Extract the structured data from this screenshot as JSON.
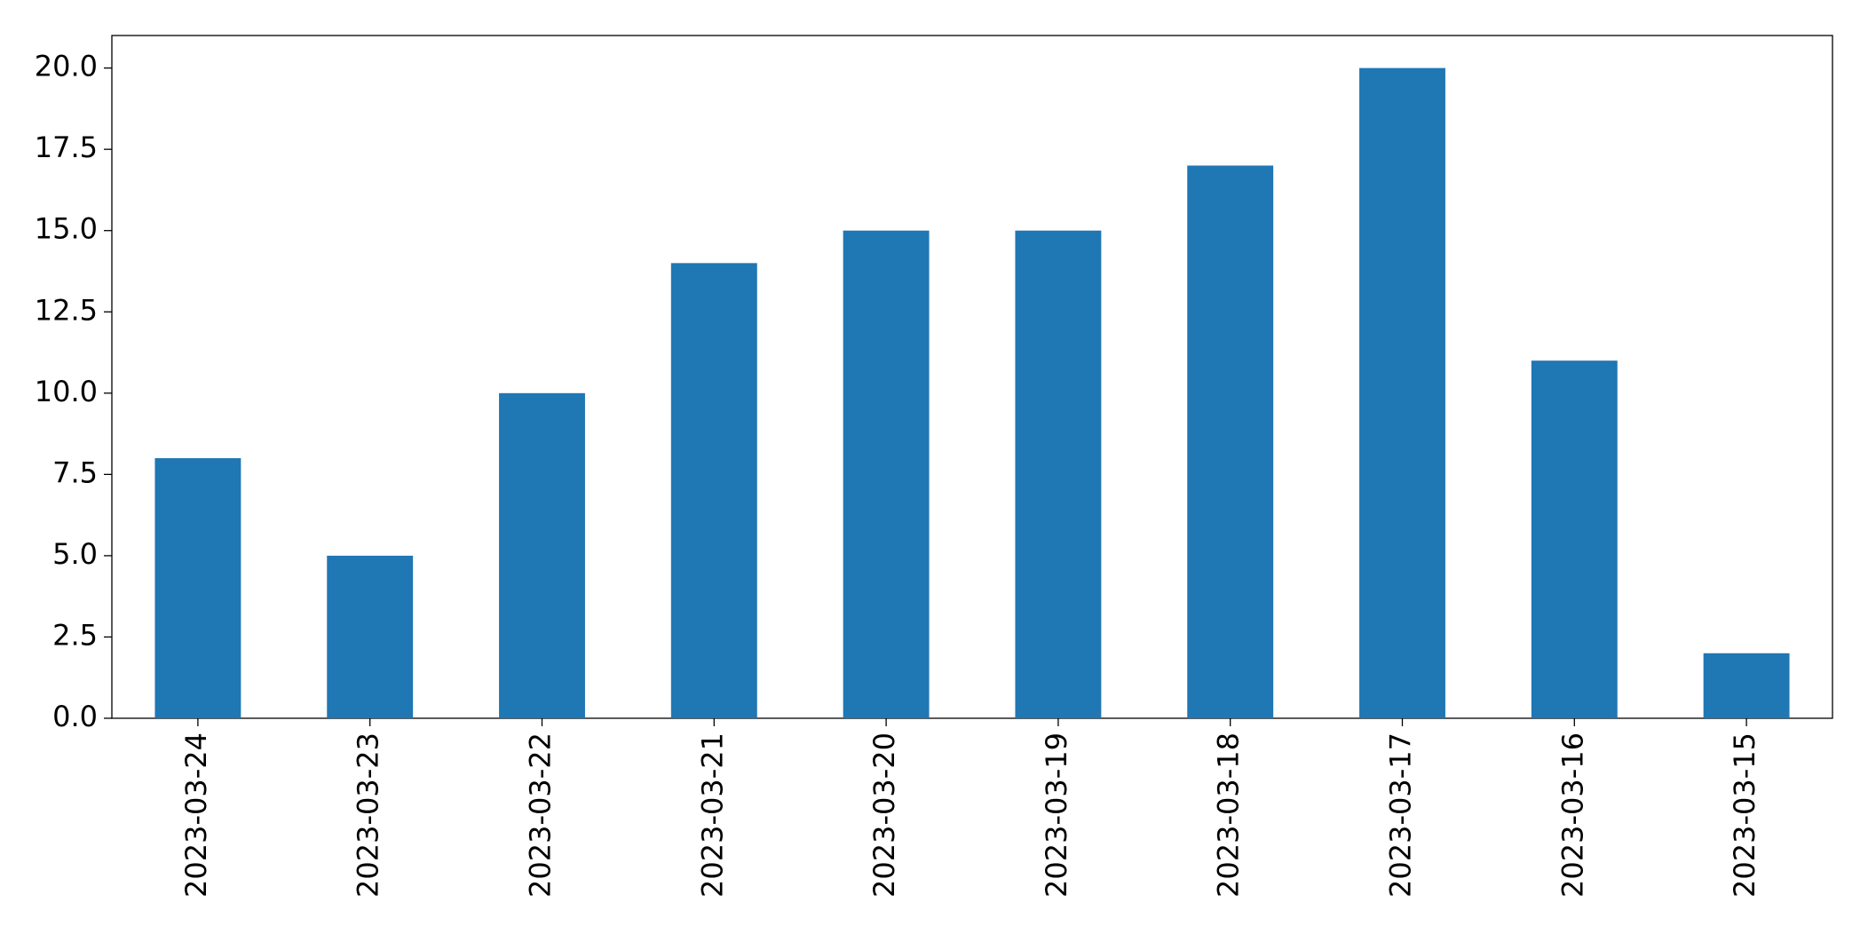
{
  "chart_data": {
    "type": "bar",
    "categories": [
      "2023-03-24",
      "2023-03-23",
      "2023-03-22",
      "2023-03-21",
      "2023-03-20",
      "2023-03-19",
      "2023-03-18",
      "2023-03-17",
      "2023-03-16",
      "2023-03-15"
    ],
    "values": [
      8,
      5,
      10,
      14,
      15,
      15,
      17,
      20,
      11,
      2
    ],
    "color": "#1f77b4",
    "ylim": [
      0,
      21
    ],
    "yticks": [
      {
        "value": 0,
        "label": "0.0"
      },
      2.5,
      {
        "value": 5,
        "label": "5.0"
      },
      7.5,
      {
        "value": 10,
        "label": "10.0"
      },
      12.5,
      {
        "value": 15,
        "label": "15.0"
      },
      17.5,
      {
        "value": 20,
        "label": "20.0"
      }
    ],
    "grid": false
  }
}
